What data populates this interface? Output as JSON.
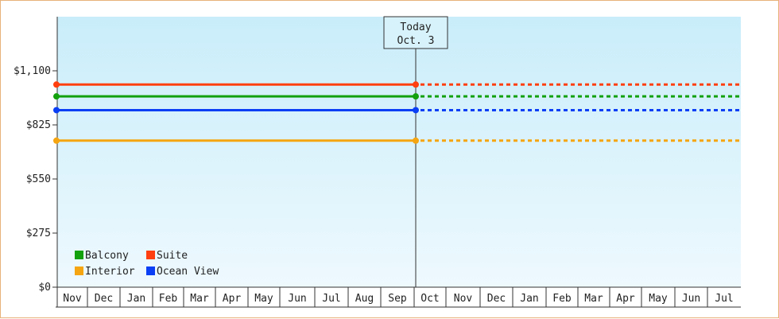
{
  "chart_data": {
    "type": "line",
    "title": "",
    "xlabel": "",
    "ylabel": "",
    "ylim": [
      0,
      1375
    ],
    "y_ticks": [
      0,
      275,
      550,
      825,
      1100
    ],
    "y_tick_labels": [
      "$0",
      "$275",
      "$550",
      "$825",
      "$1,100"
    ],
    "months": [
      "Nov",
      "Dec",
      "Jan",
      "Feb",
      "Mar",
      "Apr",
      "May",
      "Jun",
      "Jul",
      "Aug",
      "Sep",
      "Oct",
      "Nov",
      "Dec",
      "Jan",
      "Feb",
      "Mar",
      "Apr",
      "May",
      "Jun",
      "Jul"
    ],
    "today": {
      "line1": "Today",
      "line2": "Oct. 3"
    },
    "series": [
      {
        "name": "Balcony",
        "color": "#13a10e",
        "value": 970
      },
      {
        "name": "Suite",
        "color": "#ff3f0f",
        "value": 1030
      },
      {
        "name": "Interior",
        "color": "#f5a511",
        "value": 745
      },
      {
        "name": "Ocean View",
        "color": "#0a3ff5",
        "value": 900
      }
    ],
    "grid": false,
    "legend_position": "bottom-left",
    "background_gradient": [
      "#c9edfa",
      "#eef9fe"
    ]
  }
}
